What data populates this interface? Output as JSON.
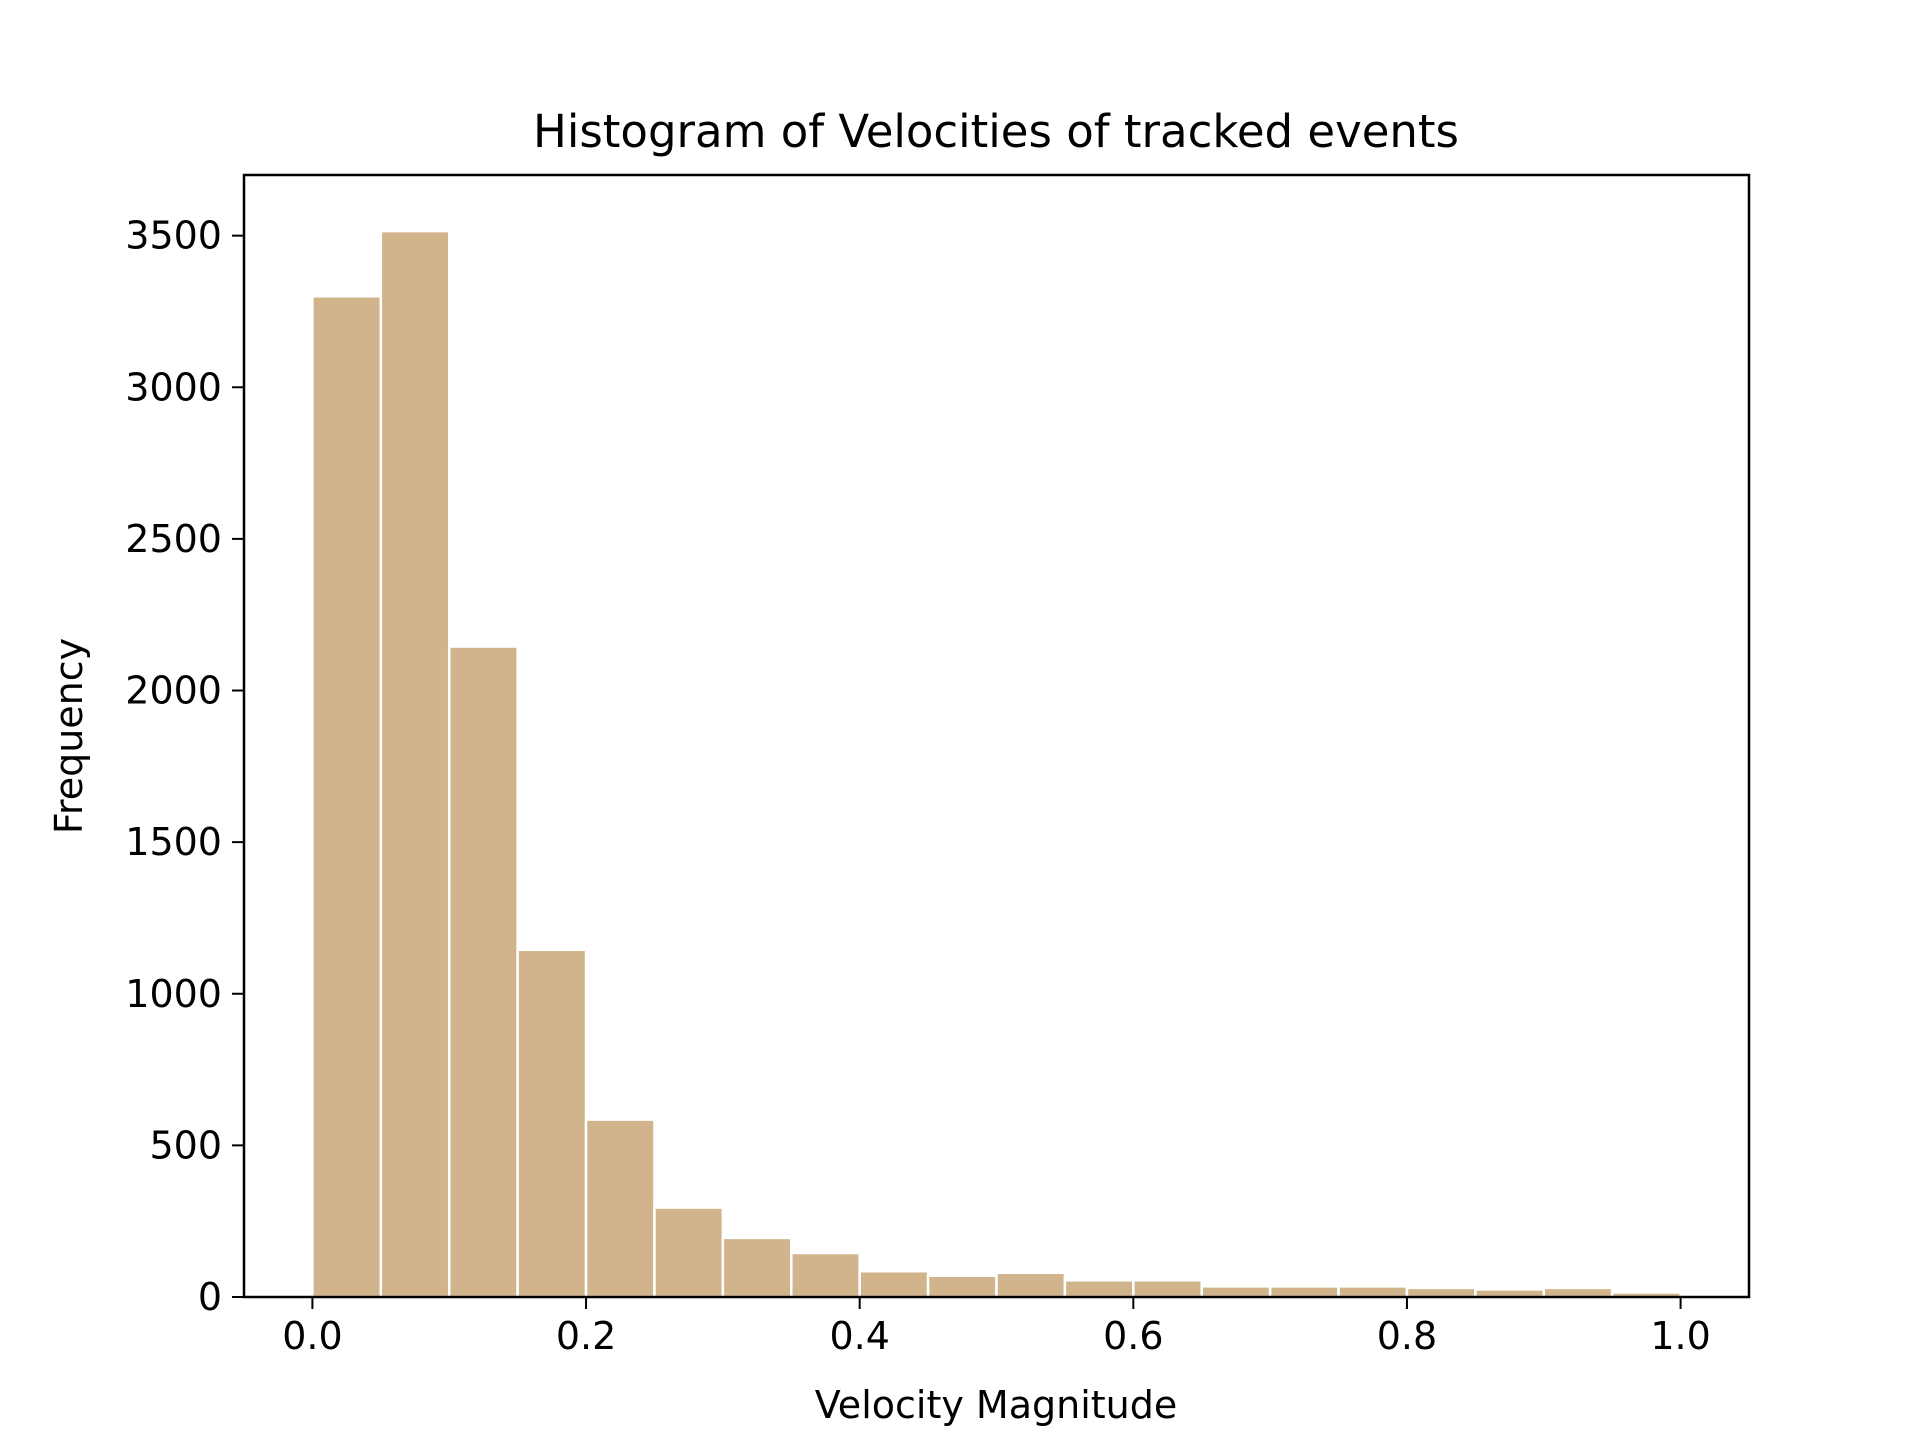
{
  "chart_data": {
    "type": "bar",
    "title": "Histogram of Velocities of tracked events",
    "xlabel": "Velocity Magnitude",
    "ylabel": "Frequency",
    "bar_color": "#d2b48c",
    "edge_color": "#ffffff",
    "bin_edges": [
      0.0,
      0.05,
      0.1,
      0.15,
      0.2,
      0.25,
      0.3,
      0.35,
      0.4,
      0.45,
      0.5,
      0.55,
      0.6,
      0.65,
      0.7,
      0.75,
      0.8,
      0.85,
      0.9,
      0.95,
      1.0
    ],
    "values": [
      3300,
      3515,
      2145,
      1145,
      585,
      295,
      195,
      145,
      85,
      70,
      80,
      55,
      55,
      35,
      35,
      35,
      30,
      25,
      30,
      15
    ],
    "xlim": [
      -0.05,
      1.05
    ],
    "ylim": [
      0,
      3700
    ],
    "xticks": [
      0.0,
      0.2,
      0.4,
      0.6,
      0.8,
      1.0
    ],
    "xtick_labels": [
      "0.0",
      "0.2",
      "0.4",
      "0.6",
      "0.8",
      "1.0"
    ],
    "yticks": [
      0,
      500,
      1000,
      1500,
      2000,
      2500,
      3000,
      3500
    ],
    "ytick_labels": [
      "0",
      "500",
      "1000",
      "1500",
      "2000",
      "2500",
      "3000",
      "3500"
    ],
    "grid": false,
    "legend": false
  }
}
